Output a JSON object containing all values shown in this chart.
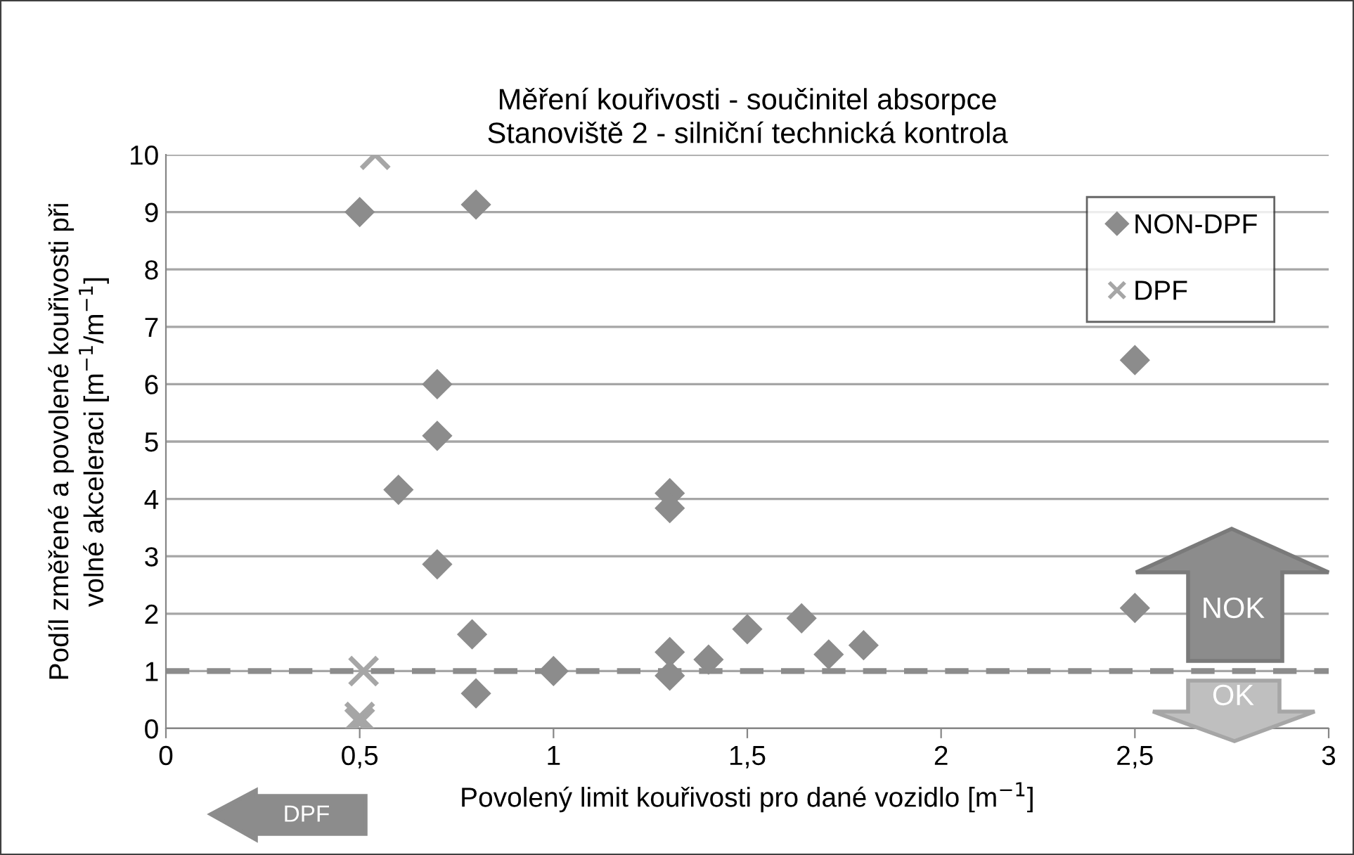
{
  "chart_data": {
    "type": "scatter",
    "title": "Měření kouřivosti - součinitel absorpce\nStanoviště 2 - silniční technická kontrola",
    "xlabel": "Povolený limit kouřivosti pro dané vozidlo [m$^{−1}$]",
    "ylabel": "Podíl změřené a povolené kouřivosti při\nvolné akceleraci [m$^{−1}$/m$^{−1}$]",
    "xlim": [
      0,
      3
    ],
    "xticks": [
      0,
      {
        "value": 0.5,
        "label": "0,5"
      },
      1,
      {
        "value": 1.5,
        "label": "1,5"
      },
      2,
      {
        "value": 2.5,
        "label": "2,5"
      },
      3
    ],
    "ylim": [
      0,
      10
    ],
    "yticks": [
      0,
      1,
      2,
      3,
      4,
      5,
      6,
      7,
      8,
      9,
      10
    ],
    "grid": "y",
    "legend": "top right",
    "series": [
      {
        "name": "NON-DPF",
        "color": "#8c8c8c",
        "marker": "diamond",
        "x": [
          0.5,
          0.8,
          0.7,
          0.7,
          0.6,
          0.7,
          0.79,
          0.8,
          1.0,
          1.3,
          1.3,
          1.3,
          1.3,
          1.4,
          1.5,
          1.64,
          1.71,
          1.8,
          2.5,
          2.5
        ],
        "values": [
          9.0,
          9.13,
          6.0,
          5.1,
          4.16,
          2.86,
          1.64,
          0.61,
          1.0,
          4.1,
          3.84,
          1.33,
          0.92,
          1.2,
          1.73,
          1.92,
          1.29,
          1.45,
          2.1,
          6.42
        ]
      },
      {
        "name": "DPF",
        "color": "#a6a6a6",
        "marker": "cross",
        "x": [
          0.54,
          0.51,
          0.5,
          0.5
        ],
        "values": [
          10.0,
          1.0,
          0.2,
          0.1
        ]
      }
    ],
    "ref_lines": [
      {
        "axis": "y",
        "value": 1,
        "color": "#8c8c8c",
        "line_style": "dashed"
      }
    ],
    "annotations": [
      "NOK",
      "OK",
      "DPF"
    ]
  }
}
